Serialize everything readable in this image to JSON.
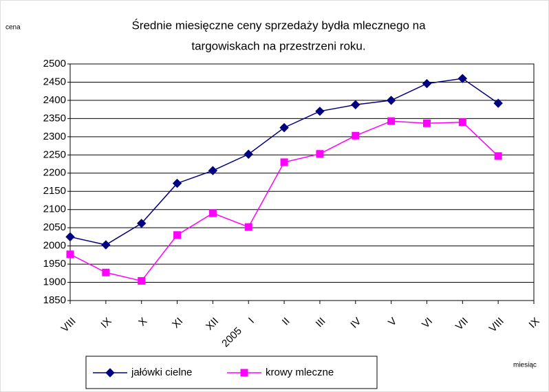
{
  "chart_data": {
    "type": "line",
    "title": [
      "Średnie miesięczne ceny sprzedaży bydła mlecznego na",
      "targowiskach na przestrzeni roku."
    ],
    "y_label": "cena",
    "x_label": "miesiąc",
    "year_annotation": "2005",
    "categories": [
      "VIII",
      "IX",
      "X",
      "XI",
      "XII",
      "I",
      "II",
      "III",
      "IV",
      "V",
      "VI",
      "VII",
      "VIII",
      "IX"
    ],
    "series": [
      {
        "name": "jałówki cielne",
        "color": "#000080",
        "marker": "diamond",
        "values": [
          2025,
          2003,
          2062,
          2172,
          2207,
          2252,
          2325,
          2370,
          2388,
          2400,
          2446,
          2460,
          2392,
          null
        ]
      },
      {
        "name": "krowy mleczne",
        "color": "#ff00ff",
        "marker": "square",
        "values": [
          1977,
          1927,
          1904,
          2030,
          2090,
          2052,
          2230,
          2253,
          2303,
          2343,
          2337,
          2340,
          2247,
          null
        ]
      }
    ],
    "ylim": [
      1850,
      2500
    ],
    "yticks": [
      1850,
      1900,
      1950,
      2000,
      2050,
      2100,
      2150,
      2200,
      2250,
      2300,
      2350,
      2400,
      2450,
      2500
    ],
    "grid": true,
    "legend": "bottom"
  }
}
